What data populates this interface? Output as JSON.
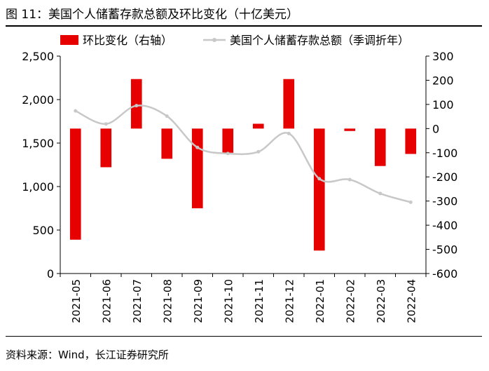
{
  "figure": {
    "title": "图  11：美国个人储蓄存款总额及环比变化（十亿美元）",
    "source": "资料来源：Wind，长江证券研究所"
  },
  "chart_data": {
    "type": "bar",
    "categories": [
      "2021-05",
      "2021-06",
      "2021-07",
      "2021-08",
      "2021-09",
      "2021-10",
      "2021-11",
      "2021-12",
      "2022-01",
      "2022-02",
      "2022-03",
      "2022-04"
    ],
    "series": [
      {
        "name": "环比变化（右轴）",
        "type": "bar",
        "axis": "right",
        "color": "#e60000",
        "values": [
          -460,
          -160,
          205,
          -125,
          -330,
          -100,
          20,
          205,
          -505,
          -10,
          -155,
          -105
        ]
      },
      {
        "name": "美国个人储蓄存款总额（季调折年）",
        "type": "line",
        "axis": "left",
        "color": "#c8c8c8",
        "values": [
          1870,
          1720,
          1930,
          1810,
          1450,
          1380,
          1400,
          1610,
          1090,
          1080,
          920,
          820
        ]
      }
    ],
    "y_left": {
      "min": 0,
      "max": 2500,
      "ticks": [
        "0",
        "500",
        "1,000",
        "1,500",
        "2,000",
        "2,500"
      ]
    },
    "y_right": {
      "min": -600,
      "max": 300,
      "ticks": [
        "-600",
        "-500",
        "-400",
        "-300",
        "-200",
        "-100",
        "0",
        "100",
        "200",
        "300"
      ]
    },
    "legend_position": "top",
    "grid": false
  }
}
